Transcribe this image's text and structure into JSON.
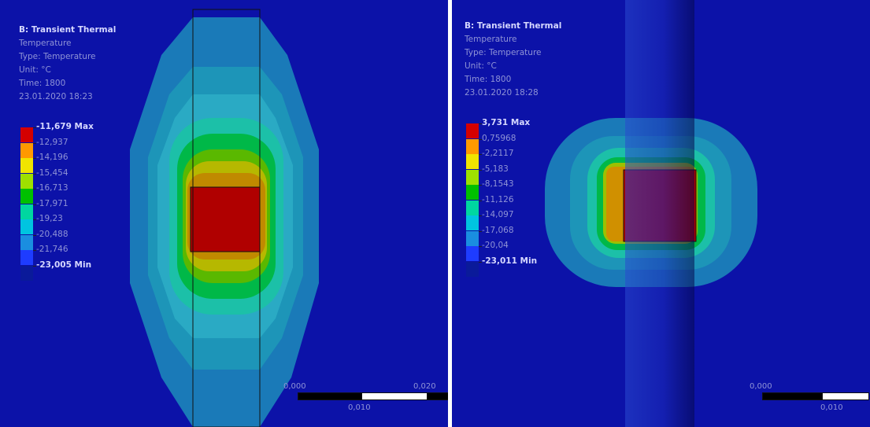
{
  "left": {
    "info": {
      "title": "B: Transient Thermal",
      "quantity": "Temperature",
      "type": "Type: Temperature",
      "unit": "Unit: °C",
      "time": "Time: 1800",
      "date": "23.01.2020 18:23"
    },
    "legend": [
      "-11,679 Max",
      "-12,937",
      "-14,196",
      "-15,454",
      "-16,713",
      "-17,971",
      "-19,23",
      "-20,488",
      "-21,746",
      "-23,005 Min"
    ],
    "scale": {
      "start": "0,000",
      "mid": "0,010",
      "end": "0,020"
    }
  },
  "right": {
    "info": {
      "title": "B: Transient Thermal",
      "quantity": "Temperature",
      "type": "Type: Temperature",
      "unit": "Unit: °C",
      "time": "Time: 1800",
      "date": "23.01.2020 18:28"
    },
    "legend": [
      "3,731 Max",
      "0,75968",
      "-2,2117",
      "-5,183",
      "-8,1543",
      "-11,126",
      "-14,097",
      "-17,068",
      "-20,04",
      "-23,011 Min"
    ],
    "scale": {
      "start": "0,000",
      "mid": "0,010"
    }
  },
  "colors": {
    "background": "#0c12a8",
    "legend": [
      "#d40000",
      "#ff9900",
      "#f0e400",
      "#9ee000",
      "#00c000",
      "#00d6a0",
      "#00c4e0",
      "#1a8ee0",
      "#1e3cff",
      "#0a1a9a"
    ]
  }
}
